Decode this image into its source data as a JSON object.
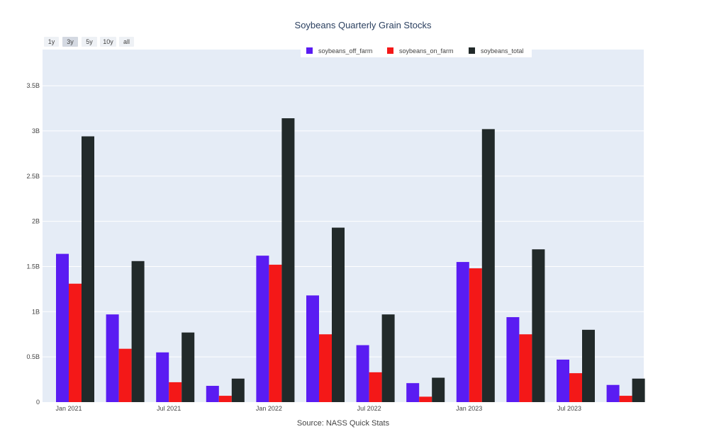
{
  "chart_data": {
    "type": "bar",
    "title": "Soybeans Quarterly Grain Stocks",
    "xlabel": "Source: NASS Quick Stats",
    "ylabel": "",
    "ylim": [
      0,
      3.9
    ],
    "y_unit": "B",
    "yticks": [
      "0",
      "0.5B",
      "1B",
      "1.5B",
      "2B",
      "2.5B",
      "3B",
      "3.5B"
    ],
    "ytick_values": [
      0,
      0.5,
      1,
      1.5,
      2,
      2.5,
      3,
      3.5
    ],
    "x_tick_labels": [
      {
        "label": "Jan 2021",
        "category_index": 0
      },
      {
        "label": "Jul 2021",
        "category_index": 2
      },
      {
        "label": "Jan 2022",
        "category_index": 4
      },
      {
        "label": "Jul 2022",
        "category_index": 6
      },
      {
        "label": "Jan 2023",
        "category_index": 8
      },
      {
        "label": "Jul 2023",
        "category_index": 10
      }
    ],
    "categories": [
      "2020-12",
      "2021-03",
      "2021-06",
      "2021-09",
      "2021-12",
      "2022-03",
      "2022-06",
      "2022-09",
      "2022-12",
      "2023-03",
      "2023-06",
      "2023-09"
    ],
    "series": [
      {
        "name": "soybeans_off_farm",
        "color": "#5a1cf2",
        "values": [
          1.64,
          0.97,
          0.55,
          0.18,
          1.62,
          1.18,
          0.63,
          0.21,
          1.55,
          0.94,
          0.47,
          0.19
        ]
      },
      {
        "name": "soybeans_on_farm",
        "color": "#f41818",
        "values": [
          1.31,
          0.59,
          0.22,
          0.07,
          1.52,
          0.75,
          0.33,
          0.06,
          1.48,
          0.75,
          0.32,
          0.07
        ]
      },
      {
        "name": "soybeans_total",
        "color": "#222a2a",
        "values": [
          2.94,
          1.56,
          0.77,
          0.26,
          3.14,
          1.93,
          0.97,
          0.27,
          3.02,
          1.69,
          0.8,
          0.26
        ]
      }
    ],
    "grid": true,
    "legend_position": "top-center"
  },
  "range_selector": {
    "buttons": [
      "1y",
      "3y",
      "5y",
      "10y",
      "all"
    ],
    "active": "3y"
  }
}
